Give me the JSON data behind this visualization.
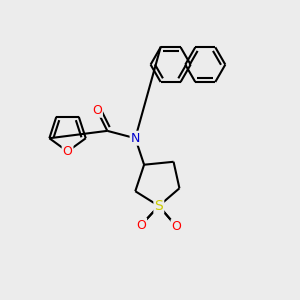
{
  "background_color": "#ececec",
  "atom_colors": {
    "C": "#000000",
    "N": "#0000cc",
    "O": "#ff0000",
    "S": "#cccc00"
  },
  "bond_color": "#000000",
  "bond_width": 1.5,
  "font_size": 9,
  "figsize": [
    3.0,
    3.0
  ],
  "dpi": 100
}
